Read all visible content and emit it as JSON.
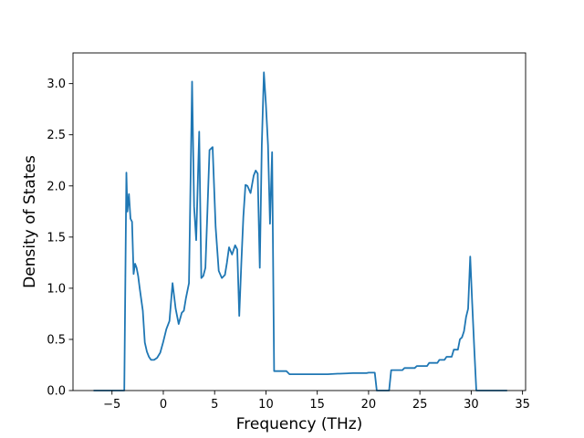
{
  "chart_data": {
    "type": "line",
    "title": "",
    "xlabel": "Frequency (THz)",
    "ylabel": "Density of States",
    "xlim": [
      -8.8,
      35.3
    ],
    "ylim": [
      0.0,
      3.3
    ],
    "xticks": [
      -5,
      0,
      5,
      10,
      15,
      20,
      25,
      30,
      35
    ],
    "xtick_labels": [
      "−5",
      "0",
      "5",
      "10",
      "15",
      "20",
      "25",
      "30",
      "35"
    ],
    "yticks": [
      0.0,
      0.5,
      1.0,
      1.5,
      2.0,
      2.5,
      3.0
    ],
    "ytick_labels": [
      "0.0",
      "0.5",
      "1.0",
      "1.5",
      "2.0",
      "2.5",
      "3.0"
    ],
    "grid": false,
    "legend": null,
    "series": [
      {
        "color": "#1f77b4",
        "x": [
          -6.8,
          -3.8,
          -3.6,
          -3.5,
          -3.35,
          -3.2,
          -3.05,
          -2.9,
          -2.75,
          -2.6,
          -2.45,
          -2.3,
          -2.0,
          -1.8,
          -1.6,
          -1.4,
          -1.2,
          -0.9,
          -0.6,
          -0.3,
          0.0,
          0.3,
          0.6,
          0.9,
          1.2,
          1.5,
          1.8,
          2.0,
          2.2,
          2.5,
          2.8,
          3.0,
          3.2,
          3.5,
          3.7,
          3.9,
          4.1,
          4.3,
          4.5,
          4.8,
          5.1,
          5.4,
          5.7,
          6.0,
          6.2,
          6.4,
          6.7,
          7.0,
          7.2,
          7.4,
          7.6,
          7.8,
          8.0,
          8.2,
          8.5,
          8.8,
          9.0,
          9.2,
          9.4,
          9.6,
          9.8,
          10.0,
          10.2,
          10.4,
          10.6,
          10.8,
          11.0,
          11.5,
          12.0,
          12.3,
          12.6,
          14.0,
          15.0,
          15.3,
          16.0,
          17.0,
          17.2,
          18.5,
          19.0,
          19.2,
          19.8,
          20.0,
          20.6,
          20.8,
          22.0,
          22.2,
          23.3,
          23.5,
          24.5,
          24.7,
          25.7,
          25.9,
          26.7,
          26.9,
          27.4,
          27.6,
          28.1,
          28.3,
          28.7,
          28.9,
          29.1,
          29.3,
          29.5,
          29.7,
          29.9,
          30.1,
          30.3,
          30.5,
          31.0,
          32.0,
          33.5
        ],
        "y": [
          0.0,
          0.0,
          2.13,
          1.75,
          1.92,
          1.68,
          1.65,
          1.14,
          1.24,
          1.2,
          1.12,
          1.0,
          0.78,
          0.47,
          0.38,
          0.33,
          0.3,
          0.3,
          0.32,
          0.37,
          0.48,
          0.6,
          0.68,
          1.05,
          0.8,
          0.65,
          0.76,
          0.78,
          0.9,
          1.05,
          3.02,
          1.8,
          1.47,
          2.53,
          1.1,
          1.12,
          1.2,
          1.75,
          2.35,
          2.38,
          1.6,
          1.17,
          1.1,
          1.13,
          1.25,
          1.4,
          1.33,
          1.42,
          1.38,
          0.73,
          1.25,
          1.7,
          2.01,
          2.0,
          1.93,
          2.1,
          2.15,
          2.12,
          1.2,
          2.4,
          3.11,
          2.8,
          2.4,
          1.63,
          2.33,
          0.19,
          0.19,
          0.19,
          0.19,
          0.16,
          0.16,
          0.16,
          0.16,
          0.16,
          0.16,
          0.165,
          0.165,
          0.17,
          0.17,
          0.17,
          0.17,
          0.175,
          0.175,
          0.0,
          0.0,
          0.2,
          0.2,
          0.22,
          0.22,
          0.24,
          0.24,
          0.27,
          0.27,
          0.3,
          0.3,
          0.33,
          0.33,
          0.4,
          0.4,
          0.5,
          0.52,
          0.58,
          0.72,
          0.8,
          1.31,
          0.85,
          0.4,
          0.0,
          0.0,
          0.0,
          0.0
        ]
      }
    ]
  }
}
